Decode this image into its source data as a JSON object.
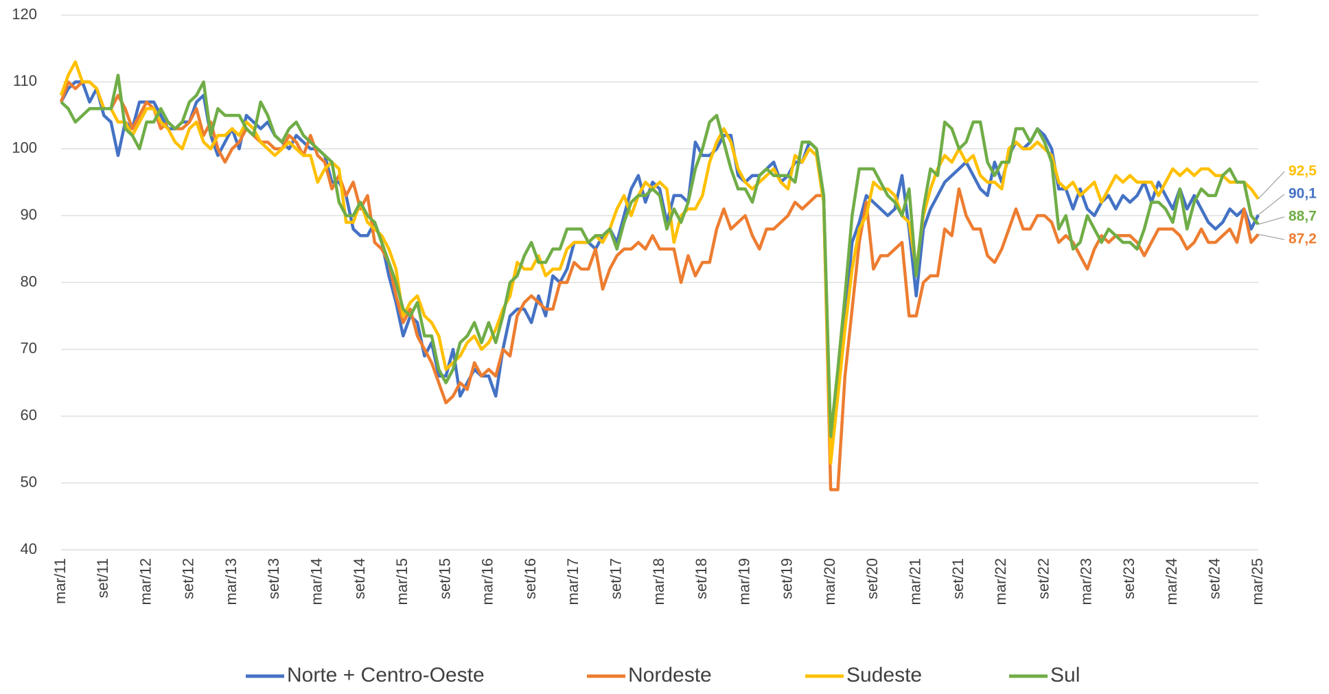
{
  "chart_data": {
    "type": "line",
    "categories": [
      "mar/11",
      null,
      null,
      null,
      null,
      null,
      "set/11",
      null,
      null,
      null,
      null,
      null,
      "mar/12",
      null,
      null,
      null,
      null,
      null,
      "set/12",
      null,
      null,
      null,
      null,
      null,
      "mar/13",
      null,
      null,
      null,
      null,
      null,
      "set/13",
      null,
      null,
      null,
      null,
      null,
      "mar/14",
      null,
      null,
      null,
      null,
      null,
      "set/14",
      null,
      null,
      null,
      null,
      null,
      "mar/15",
      null,
      null,
      null,
      null,
      null,
      "set/15",
      null,
      null,
      null,
      null,
      null,
      "mar/16",
      null,
      null,
      null,
      null,
      null,
      "set/16",
      null,
      null,
      null,
      null,
      null,
      "mar/17",
      null,
      null,
      null,
      null,
      null,
      "set/17",
      null,
      null,
      null,
      null,
      null,
      "mar/18",
      null,
      null,
      null,
      null,
      null,
      "set/18",
      null,
      null,
      null,
      null,
      null,
      "mar/19",
      null,
      null,
      null,
      null,
      null,
      "set/19",
      null,
      null,
      null,
      null,
      null,
      "mar/20",
      null,
      null,
      null,
      null,
      null,
      "set/20",
      null,
      null,
      null,
      null,
      null,
      "mar/21",
      null,
      null,
      null,
      null,
      null,
      "set/21",
      null,
      null,
      null,
      null,
      null,
      "mar/22",
      null,
      null,
      null,
      null,
      null,
      "set/22",
      null,
      null,
      null,
      null,
      null,
      "mar/23",
      null,
      null,
      null,
      null,
      null,
      "set/23",
      null,
      null,
      null,
      null,
      null,
      "mar/24",
      null,
      null,
      null,
      null,
      null,
      "set/24",
      null,
      null,
      null,
      null,
      null,
      "mar/25"
    ],
    "series": [
      {
        "name": "Norte + Centro-Oeste",
        "color": "#4472c4",
        "end_label": "90,1",
        "values": [
          107,
          109,
          110,
          110,
          107,
          109,
          105,
          104,
          99,
          104,
          103,
          107,
          107,
          107,
          105,
          103,
          103,
          104,
          104,
          107,
          108,
          102,
          99,
          101,
          103,
          100,
          105,
          104,
          103,
          104,
          102,
          101,
          100,
          102,
          101,
          100,
          100,
          99,
          95,
          95,
          93,
          88,
          87,
          87,
          89,
          86,
          81,
          77,
          72,
          75,
          74,
          69,
          71,
          66,
          66,
          70,
          63,
          65,
          67,
          66,
          66,
          63,
          70,
          75,
          76,
          76,
          74,
          78,
          75,
          81,
          80,
          82,
          86,
          86,
          86,
          85,
          87,
          88,
          86,
          90,
          94,
          96,
          92,
          95,
          94,
          89,
          93,
          93,
          92,
          101,
          99,
          99,
          100,
          102,
          102,
          96,
          95,
          96,
          96,
          97,
          98,
          95,
          96,
          98,
          98,
          101,
          100,
          93,
          55,
          65,
          75,
          86,
          89,
          93,
          92,
          91,
          90,
          91,
          96,
          88,
          78,
          88,
          91,
          93,
          95,
          96,
          97,
          98,
          96,
          94,
          93,
          98,
          95,
          99,
          101,
          100,
          101,
          103,
          102,
          100,
          94,
          94,
          91,
          94,
          91,
          90,
          92,
          93,
          91,
          93,
          92,
          93,
          95,
          92,
          95,
          93,
          91,
          94,
          91,
          93,
          91,
          89,
          88,
          89,
          91,
          90,
          91,
          88,
          90.1
        ]
      },
      {
        "name": "Nordeste",
        "color": "#ed7d31",
        "end_label": "87,2",
        "values": [
          107,
          110,
          109,
          110,
          110,
          109,
          106,
          106,
          108,
          106,
          103,
          105,
          107,
          106,
          103,
          104,
          103,
          103,
          104,
          106,
          102,
          104,
          100,
          98,
          100,
          101,
          103,
          102,
          101,
          101,
          100,
          100,
          102,
          101,
          99,
          102,
          99,
          98,
          94,
          96,
          93,
          95,
          91,
          93,
          86,
          85,
          83,
          78,
          74,
          76,
          72,
          70,
          68,
          65,
          62,
          63,
          65,
          64,
          68,
          66,
          67,
          66,
          70,
          69,
          75,
          77,
          78,
          77,
          76,
          76,
          80,
          80,
          83,
          82,
          82,
          85,
          79,
          82,
          84,
          85,
          85,
          86,
          85,
          87,
          85,
          85,
          85,
          80,
          84,
          81,
          83,
          83,
          88,
          91,
          88,
          89,
          90,
          87,
          85,
          88,
          88,
          89,
          90,
          92,
          91,
          92,
          93,
          93,
          49,
          49,
          66,
          76,
          86,
          92,
          82,
          84,
          84,
          85,
          86,
          75,
          75,
          80,
          81,
          81,
          88,
          87,
          94,
          90,
          88,
          88,
          84,
          83,
          85,
          88,
          91,
          88,
          88,
          90,
          90,
          89,
          86,
          87,
          86,
          84,
          82,
          85,
          87,
          86,
          87,
          87,
          87,
          86,
          84,
          86,
          88,
          88,
          88,
          87,
          85,
          86,
          88,
          86,
          86,
          87,
          88,
          86,
          91,
          86,
          87.2
        ]
      },
      {
        "name": "Sudeste",
        "color": "#ffc000",
        "end_label": "92,5",
        "values": [
          108,
          111,
          113,
          110,
          110,
          109,
          106,
          106,
          104,
          104,
          102,
          104,
          106,
          106,
          104,
          103,
          101,
          100,
          103,
          104,
          101,
          100,
          102,
          102,
          103,
          102,
          104,
          103,
          101,
          100,
          99,
          100,
          101,
          100,
          99,
          99,
          95,
          97,
          98,
          97,
          89,
          89,
          92,
          89,
          88,
          87,
          85,
          82,
          75,
          77,
          78,
          75,
          74,
          72,
          67,
          68,
          69,
          71,
          72,
          70,
          71,
          73,
          76,
          78,
          83,
          82,
          82,
          84,
          81,
          82,
          82,
          85,
          86,
          86,
          86,
          87,
          86,
          88,
          91,
          93,
          90,
          93,
          95,
          94,
          95,
          94,
          86,
          90,
          91,
          91,
          93,
          98,
          101,
          103,
          101,
          97,
          95,
          94,
          95,
          96,
          97,
          95,
          94,
          99,
          98,
          100,
          99,
          92,
          53,
          63,
          73,
          82,
          88,
          90,
          95,
          94,
          94,
          93,
          90,
          89,
          82,
          90,
          94,
          97,
          99,
          98,
          100,
          98,
          99,
          96,
          95,
          95,
          94,
          100,
          101,
          100,
          100,
          101,
          100,
          99,
          95,
          94,
          95,
          93,
          94,
          95,
          92,
          94,
          96,
          95,
          96,
          95,
          95,
          95,
          93,
          95,
          97,
          96,
          97,
          96,
          97,
          97,
          96,
          96,
          95,
          95,
          95,
          94,
          92.5
        ]
      },
      {
        "name": "Sul",
        "color": "#70ad47",
        "end_label": "88,7",
        "values": [
          107,
          106,
          104,
          105,
          106,
          106,
          106,
          106,
          111,
          103,
          102,
          100,
          104,
          104,
          106,
          104,
          103,
          104,
          107,
          108,
          110,
          102,
          106,
          105,
          105,
          105,
          103,
          102,
          107,
          105,
          102,
          101,
          103,
          104,
          102,
          101,
          100,
          99,
          98,
          92,
          90,
          90,
          92,
          90,
          89,
          86,
          83,
          80,
          76,
          75,
          77,
          72,
          72,
          67,
          65,
          67,
          71,
          72,
          74,
          71,
          74,
          71,
          75,
          80,
          81,
          84,
          86,
          83,
          83,
          85,
          85,
          88,
          88,
          88,
          86,
          87,
          87,
          88,
          85,
          89,
          92,
          93,
          93,
          94,
          93,
          88,
          91,
          89,
          92,
          97,
          100,
          104,
          105,
          101,
          97,
          94,
          94,
          92,
          96,
          97,
          96,
          96,
          96,
          95,
          101,
          101,
          100,
          93,
          57,
          67,
          78,
          90,
          97,
          97,
          97,
          95,
          93,
          92,
          90,
          94,
          81,
          91,
          97,
          96,
          104,
          103,
          100,
          101,
          104,
          104,
          98,
          96,
          98,
          98,
          103,
          103,
          101,
          103,
          101,
          98,
          88,
          90,
          85,
          86,
          90,
          88,
          86,
          88,
          87,
          86,
          86,
          85,
          88,
          92,
          92,
          91,
          89,
          94,
          88,
          92,
          94,
          93,
          93,
          96,
          97,
          95,
          95,
          90,
          88.7
        ]
      }
    ],
    "ylim": [
      40,
      120
    ],
    "yticks": [
      40,
      50,
      60,
      70,
      80,
      90,
      100,
      110,
      120
    ],
    "grid": true,
    "legend": "bottom"
  }
}
